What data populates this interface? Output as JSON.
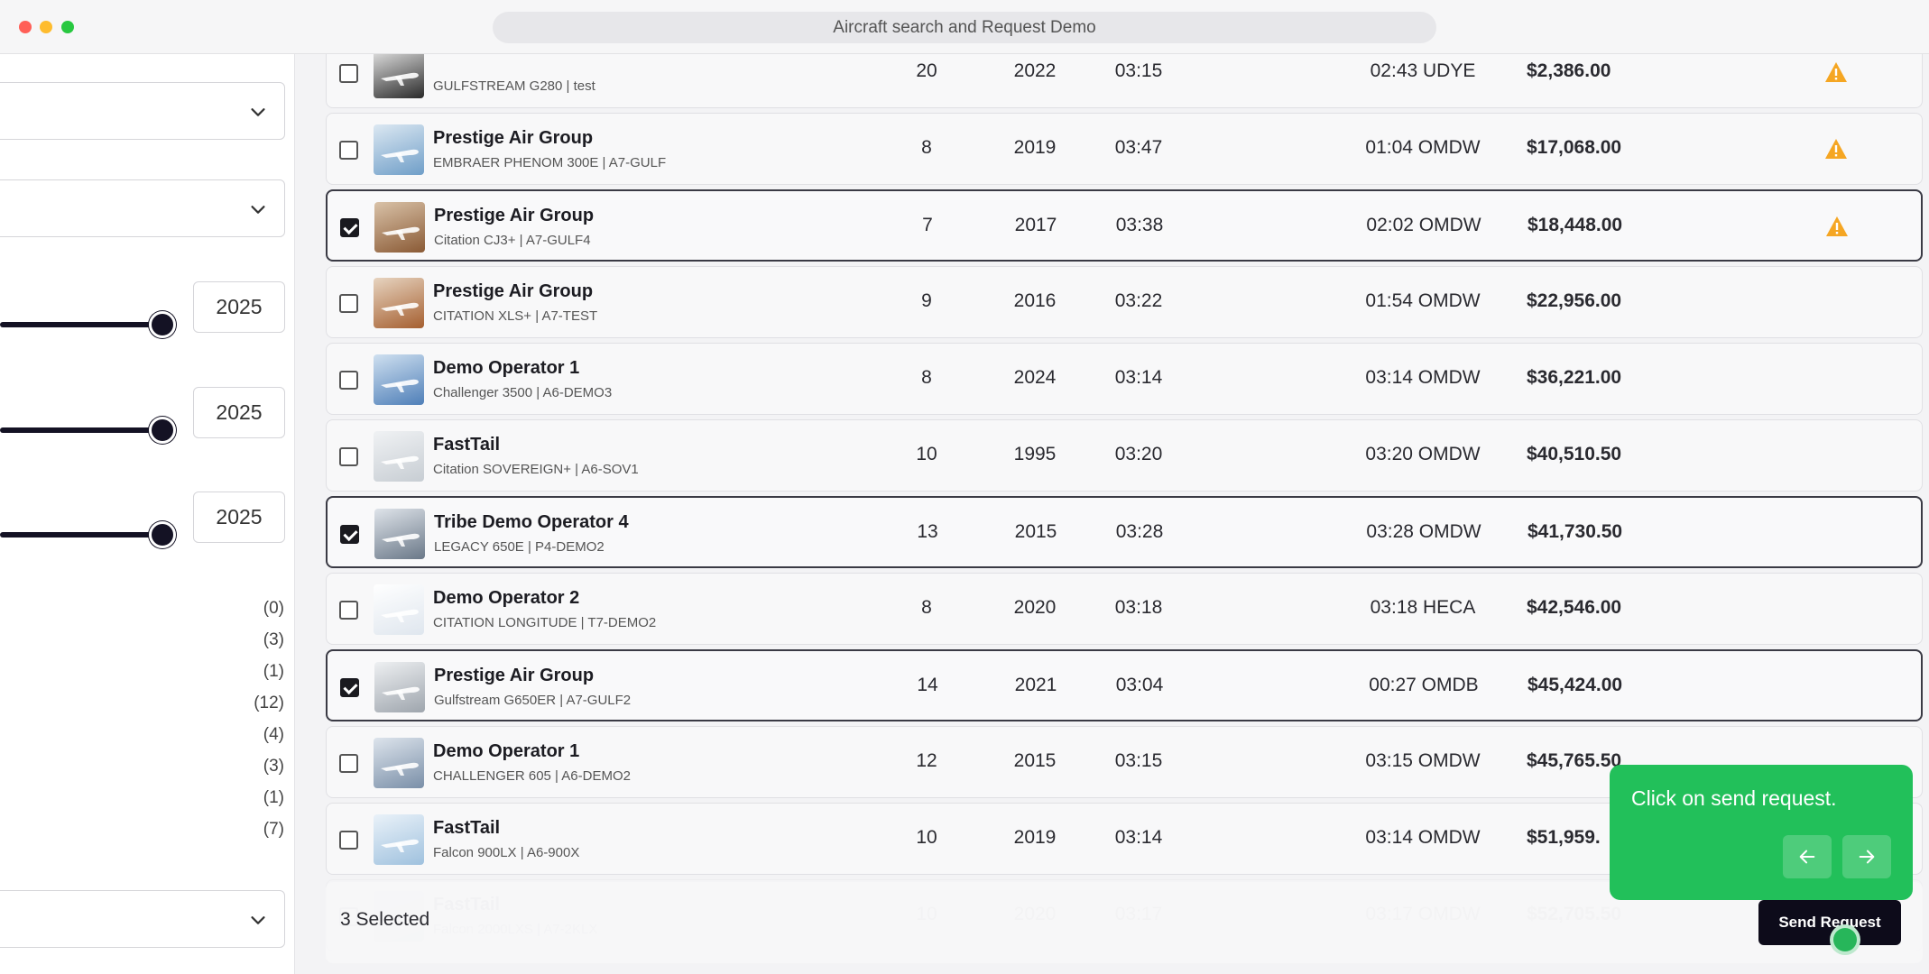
{
  "window": {
    "title": "Aircraft search and Request Demo"
  },
  "sidebar": {
    "year_values": [
      "2025",
      "2025",
      "2025"
    ],
    "counts": [
      "(0)",
      "(3)",
      "(1)",
      "(12)",
      "(4)",
      "(3)",
      "(1)",
      "(7)"
    ]
  },
  "rows": [
    {
      "operator": "",
      "aircraft": "GULFSTREAM G280 | test",
      "seats": "20",
      "year": "2022",
      "time": "03:15",
      "position": "02:43 UDYE",
      "price": "$2,386.00",
      "warning": true,
      "selected": false
    },
    {
      "operator": "Prestige Air Group",
      "aircraft": "EMBRAER PHENOM 300E | A7-GULF",
      "seats": "8",
      "year": "2019",
      "time": "03:47",
      "position": "01:04 OMDW",
      "price": "$17,068.00",
      "warning": true,
      "selected": false
    },
    {
      "operator": "Prestige Air Group",
      "aircraft": "Citation CJ3+ | A7-GULF4",
      "seats": "7",
      "year": "2017",
      "time": "03:38",
      "position": "02:02 OMDW",
      "price": "$18,448.00",
      "warning": true,
      "selected": true
    },
    {
      "operator": "Prestige Air Group",
      "aircraft": "CITATION XLS+ | A7-TEST",
      "seats": "9",
      "year": "2016",
      "time": "03:22",
      "position": "01:54 OMDW",
      "price": "$22,956.00",
      "warning": false,
      "selected": false
    },
    {
      "operator": "Demo Operator 1",
      "aircraft": "Challenger 3500 | A6-DEMO3",
      "seats": "8",
      "year": "2024",
      "time": "03:14",
      "position": "03:14 OMDW",
      "price": "$36,221.00",
      "warning": false,
      "selected": false
    },
    {
      "operator": "FastTail",
      "aircraft": "Citation SOVEREIGN+ | A6-SOV1",
      "seats": "10",
      "year": "1995",
      "time": "03:20",
      "position": "03:20 OMDW",
      "price": "$40,510.50",
      "warning": false,
      "selected": false
    },
    {
      "operator": "Tribe Demo Operator 4",
      "aircraft": "LEGACY 650E | P4-DEMO2",
      "seats": "13",
      "year": "2015",
      "time": "03:28",
      "position": "03:28 OMDW",
      "price": "$41,730.50",
      "warning": false,
      "selected": true
    },
    {
      "operator": "Demo Operator 2",
      "aircraft": "CITATION LONGITUDE | T7-DEMO2",
      "seats": "8",
      "year": "2020",
      "time": "03:18",
      "position": "03:18 HECA",
      "price": "$42,546.00",
      "warning": false,
      "selected": false
    },
    {
      "operator": "Prestige Air Group",
      "aircraft": "Gulfstream G650ER | A7-GULF2",
      "seats": "14",
      "year": "2021",
      "time": "03:04",
      "position": "00:27 OMDB",
      "price": "$45,424.00",
      "warning": false,
      "selected": true
    },
    {
      "operator": "Demo Operator 1",
      "aircraft": "CHALLENGER 605 | A6-DEMO2",
      "seats": "12",
      "year": "2015",
      "time": "03:15",
      "position": "03:15 OMDW",
      "price": "$45,765.50",
      "warning": false,
      "selected": false
    },
    {
      "operator": "FastTail",
      "aircraft": "Falcon 900LX | A6-900X",
      "seats": "10",
      "year": "2019",
      "time": "03:14",
      "position": "03:14 OMDW",
      "price": "$51,959.",
      "warning": false,
      "selected": false
    },
    {
      "operator": "FastTail",
      "aircraft": "Falcon 2000LXS | A7-2KLX",
      "seats": "10",
      "year": "2020",
      "time": "03:17",
      "position": "03:17 OMDW",
      "price": "$52,705.50",
      "warning": false,
      "selected": false
    }
  ],
  "bottom_bar": {
    "selected_label": "3 Selected",
    "send_label": "Send Request"
  },
  "tooltip": {
    "message": "Click on send request."
  },
  "colors": {
    "accent_green": "#22c05a",
    "dark": "#0d0b1a",
    "warning": "#f5a623"
  }
}
